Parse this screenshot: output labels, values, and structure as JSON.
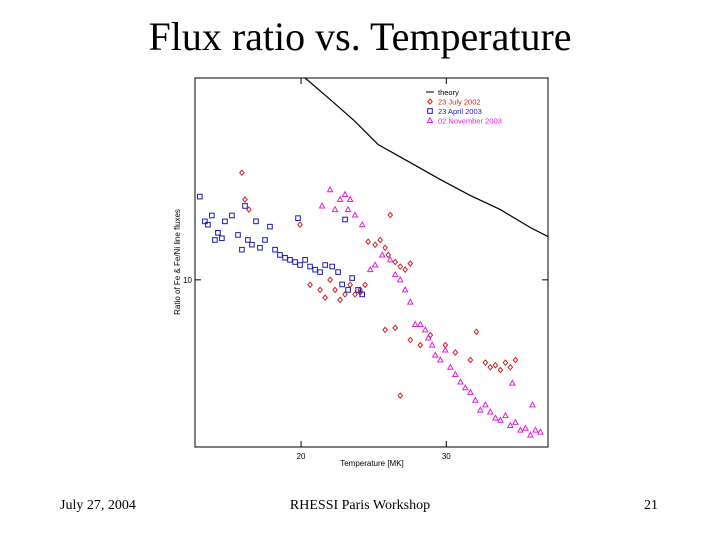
{
  "slide": {
    "title": "Flux ratio vs. Temperature",
    "footer_left": "July 27, 2004",
    "footer_center": "RHESSI Paris Workshop",
    "footer_right": "21"
  },
  "chart_data": {
    "type": "scatter",
    "xlabel": "Temperature [MK]",
    "ylabel": "Ratio of Fe & Fe/Ni line fluxes",
    "xlim": [
      12.7,
      37.0
    ],
    "xticks": [
      20,
      30
    ],
    "ylim": [
      1.55,
      95
    ],
    "yticks": [
      10
    ],
    "ylog": true,
    "legend": "upper right",
    "series": [
      {
        "name": "theory",
        "color": "#000000",
        "marker": "line",
        "x": [
          20.28,
          22.0,
          23.72,
          25.31,
          27.52,
          29.59,
          31.66,
          33.72,
          35.79,
          37.0
        ],
        "values": [
          95,
          74.8,
          58.5,
          45.2,
          37.0,
          30.6,
          25.6,
          21.9,
          17.9,
          16.2
        ]
      },
      {
        "name": "23 July 2002",
        "color": "#d02020",
        "marker": "diamond",
        "x": [
          15.93,
          16.14,
          16.41,
          19.93,
          20.62,
          21.31,
          21.66,
          22.0,
          22.34,
          22.69,
          23.03,
          23.38,
          23.72,
          24.07,
          24.62,
          25.1,
          25.45,
          25.79,
          26.0,
          26.14,
          26.48,
          26.83,
          27.17,
          27.52,
          25.79,
          26.48,
          27.52,
          28.21,
          28.9,
          29.93,
          30.62,
          31.66,
          32.07,
          32.69,
          33.03,
          33.38,
          33.72,
          34.07,
          34.41,
          34.76,
          26.83,
          24.07,
          24.41
        ],
        "values": [
          33.0,
          24.5,
          21.9,
          18.5,
          9.46,
          8.94,
          8.2,
          10.0,
          8.94,
          8.0,
          8.5,
          9.46,
          8.5,
          8.7,
          15.3,
          14.8,
          15.6,
          14.3,
          13.2,
          20.6,
          12.2,
          11.6,
          11.2,
          12.0,
          5.72,
          5.85,
          5.11,
          4.83,
          5.4,
          4.83,
          4.45,
          4.09,
          5.6,
          3.97,
          3.77,
          3.86,
          3.66,
          3.97,
          3.77,
          4.09,
          2.75,
          8.94,
          9.46
        ]
      },
      {
        "name": "23 April 2003",
        "color": "#1a1ab0",
        "marker": "square",
        "x": [
          13.03,
          13.38,
          13.59,
          13.86,
          14.07,
          14.28,
          14.55,
          14.76,
          15.24,
          15.66,
          15.93,
          16.14,
          16.34,
          16.62,
          16.9,
          17.17,
          17.52,
          17.86,
          18.21,
          18.55,
          18.9,
          19.24,
          19.59,
          19.79,
          19.93,
          20.28,
          20.62,
          20.97,
          21.31,
          21.66,
          22.14,
          22.55,
          22.83,
          23.24,
          23.52,
          23.93,
          24.21,
          23.03
        ],
        "values": [
          25.3,
          19.2,
          18.5,
          20.5,
          15.6,
          16.9,
          15.9,
          19.2,
          20.5,
          16.5,
          14.0,
          22.8,
          15.6,
          14.8,
          19.2,
          14.3,
          15.6,
          18.1,
          14.0,
          13.2,
          12.8,
          12.5,
          12.2,
          19.9,
          11.8,
          12.5,
          11.6,
          11.2,
          10.9,
          11.8,
          11.6,
          10.9,
          9.5,
          8.94,
          10.2,
          8.94,
          8.5,
          19.6
        ]
      },
      {
        "name": "02 November 2003",
        "color": "#e020e0",
        "marker": "triangle",
        "x": [
          21.45,
          22.0,
          22.34,
          22.69,
          23.03,
          23.24,
          23.38,
          23.72,
          24.21,
          24.76,
          25.1,
          25.59,
          26.14,
          26.48,
          26.83,
          27.17,
          27.52,
          27.86,
          28.21,
          28.55,
          28.76,
          29.03,
          29.24,
          29.59,
          29.93,
          30.28,
          30.62,
          30.97,
          31.31,
          31.66,
          32.0,
          32.34,
          32.69,
          33.03,
          33.38,
          33.72,
          34.07,
          34.41,
          34.76,
          35.1,
          35.45,
          35.79,
          36.14,
          36.48,
          34.55,
          35.93
        ],
        "values": [
          22.8,
          27.3,
          21.9,
          24.5,
          25.9,
          21.9,
          24.5,
          20.6,
          18.5,
          11.2,
          11.8,
          13.2,
          12.5,
          10.6,
          10.0,
          8.94,
          7.8,
          6.08,
          6.08,
          5.72,
          5.23,
          4.83,
          4.32,
          4.09,
          4.57,
          3.77,
          3.48,
          3.2,
          3.0,
          2.85,
          2.61,
          2.34,
          2.48,
          2.29,
          2.14,
          2.09,
          2.2,
          1.97,
          2.04,
          1.87,
          1.91,
          1.77,
          1.87,
          1.83,
          3.16,
          2.48
        ]
      }
    ]
  }
}
